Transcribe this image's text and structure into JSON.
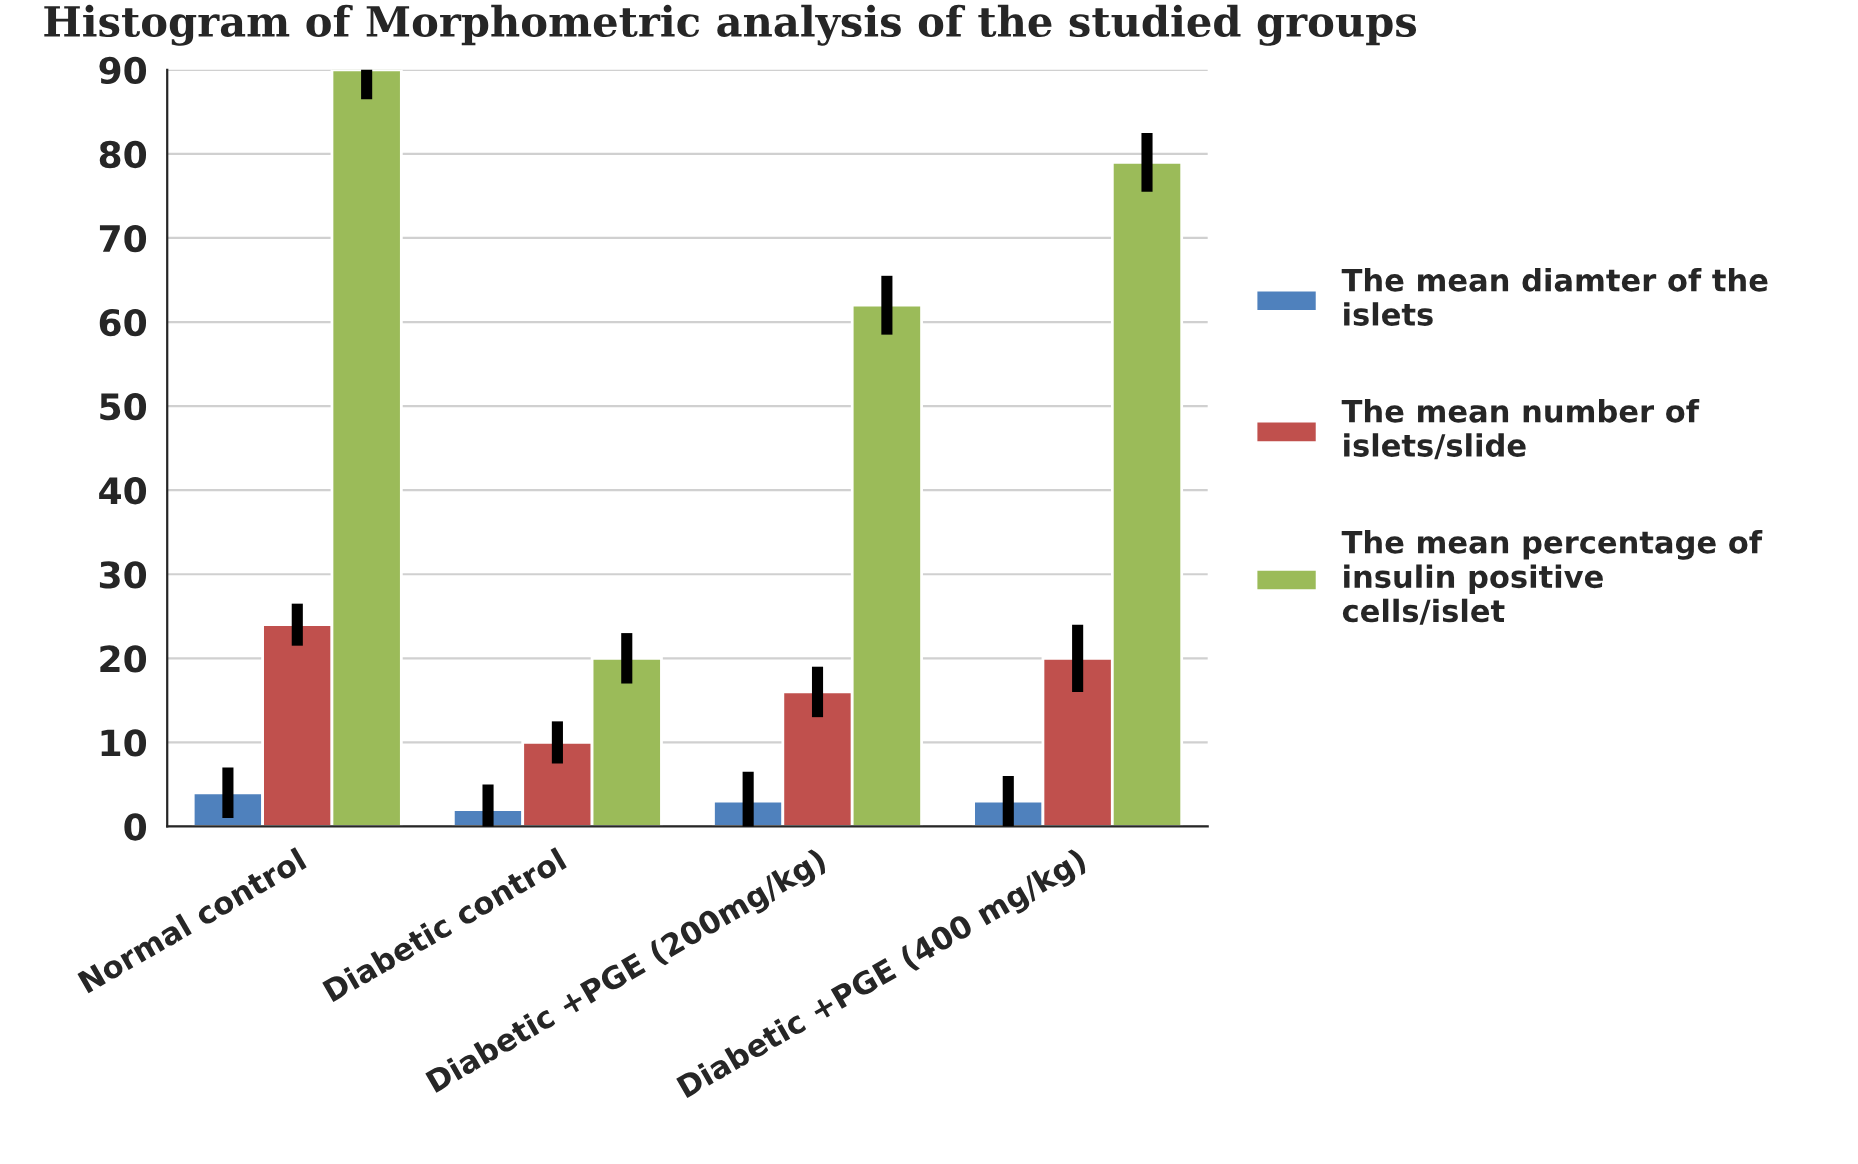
{
  "chart_data": {
    "type": "bar",
    "title": "Histogram of Morphometric analysis of the studied groups",
    "categories": [
      "Normal control",
      "Diabetic control",
      "Diabetic +PGE (200mg/kg)",
      "Diabetic +PGE (400 mg/kg)"
    ],
    "series": [
      {
        "name": "The mean diamter of the islets",
        "color": "#4f81bd",
        "values": [
          4,
          2,
          3,
          3
        ],
        "errors": [
          3,
          3,
          3.5,
          3
        ]
      },
      {
        "name": "The mean number of islets/slide",
        "color": "#c0504d",
        "values": [
          24,
          10,
          16,
          20
        ],
        "errors": [
          2.5,
          2.5,
          3,
          4
        ]
      },
      {
        "name": "The mean percentage of insulin positive cells/islet",
        "color": "#9bbb59",
        "values": [
          90,
          20,
          62,
          79
        ],
        "errors": [
          3.5,
          3,
          3.5,
          3.5
        ]
      }
    ],
    "ylim": [
      0,
      90
    ],
    "yticks": [
      0,
      10,
      20,
      30,
      40,
      50,
      60,
      70,
      80,
      90
    ],
    "grid": "y",
    "legend": "right"
  }
}
